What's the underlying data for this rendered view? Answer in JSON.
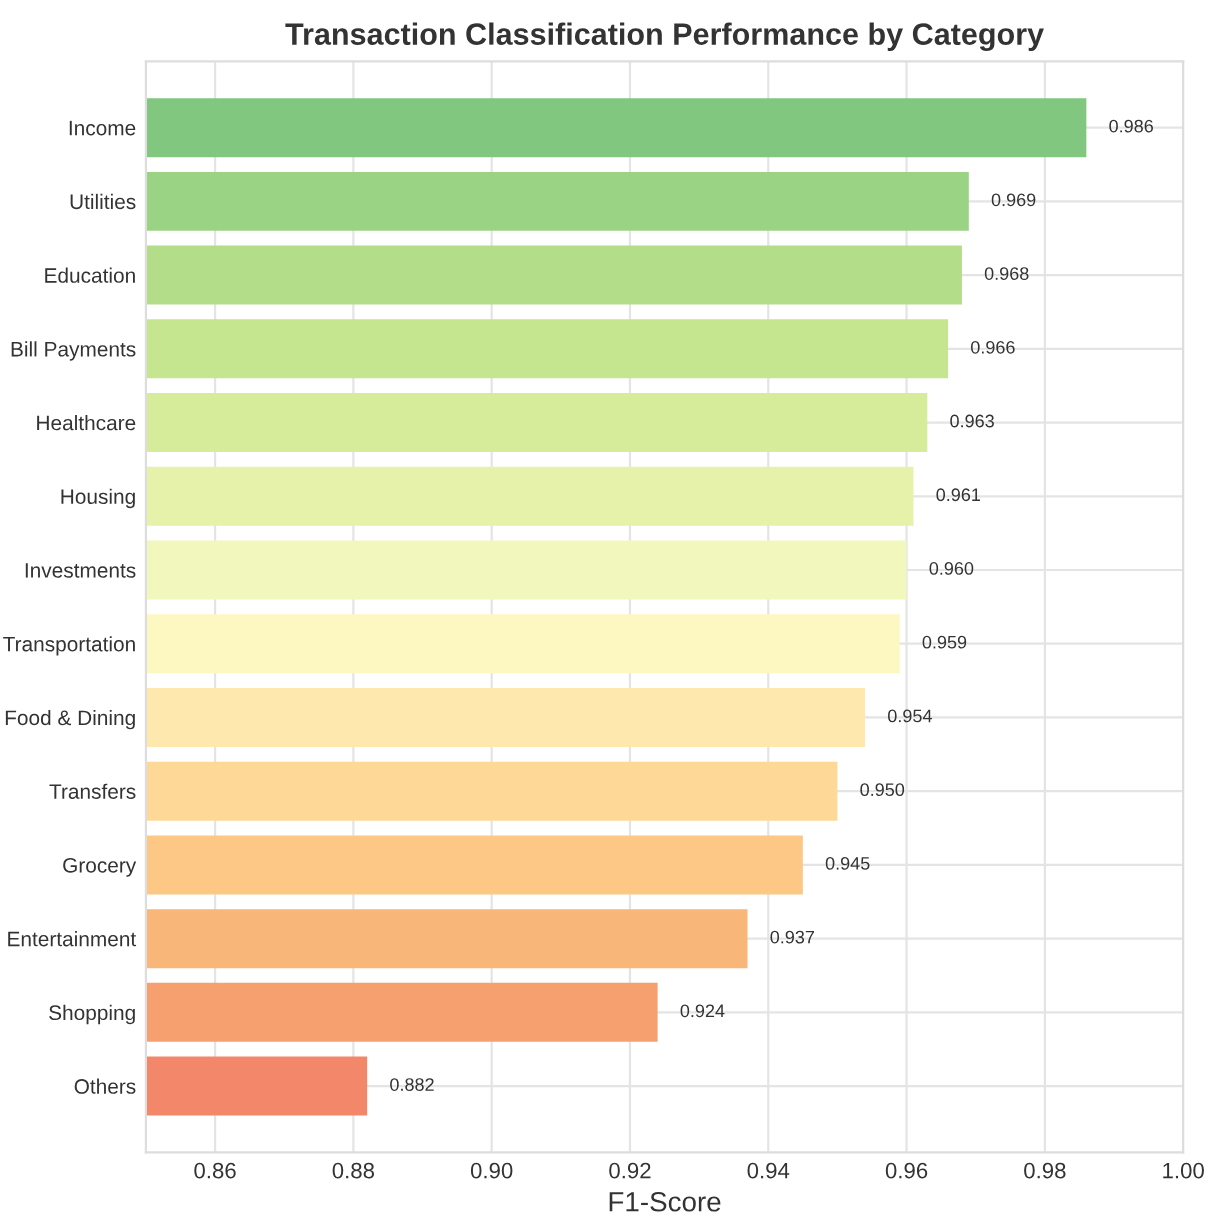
{
  "chart_data": {
    "type": "bar",
    "orientation": "horizontal",
    "title": "Transaction Classification Performance by Category",
    "xlabel": "F1-Score",
    "categories": [
      "Income",
      "Utilities",
      "Education",
      "Bill Payments",
      "Healthcare",
      "Housing",
      "Investments",
      "Transportation",
      "Food & Dining",
      "Transfers",
      "Grocery",
      "Entertainment",
      "Shopping",
      "Others"
    ],
    "values": [
      0.986,
      0.969,
      0.968,
      0.966,
      0.963,
      0.961,
      0.96,
      0.959,
      0.954,
      0.95,
      0.945,
      0.937,
      0.924,
      0.882
    ],
    "value_labels": [
      "0.986",
      "0.969",
      "0.968",
      "0.966",
      "0.963",
      "0.961",
      "0.960",
      "0.959",
      "0.954",
      "0.950",
      "0.945",
      "0.937",
      "0.924",
      "0.882"
    ],
    "colors": [
      "#82c77f",
      "#9bd384",
      "#b3dd88",
      "#c6e58f",
      "#d7ec9a",
      "#e6f2aa",
      "#f2f8bd",
      "#fdf7c2",
      "#fee8ad",
      "#fed896",
      "#fdc886",
      "#f9b679",
      "#f6a06f",
      "#f3876a"
    ],
    "xlim": [
      0.85,
      1.0
    ],
    "xticks": [
      {
        "value": 0.86,
        "label": "0.86"
      },
      {
        "value": 0.88,
        "label": "0.88"
      },
      {
        "value": 0.9,
        "label": "0.90"
      },
      {
        "value": 0.92,
        "label": "0.92"
      },
      {
        "value": 0.94,
        "label": "0.94"
      },
      {
        "value": 0.96,
        "label": "0.96"
      },
      {
        "value": 0.98,
        "label": "0.98"
      },
      {
        "value": 1.0,
        "label": "1.00"
      }
    ],
    "grid": true
  }
}
